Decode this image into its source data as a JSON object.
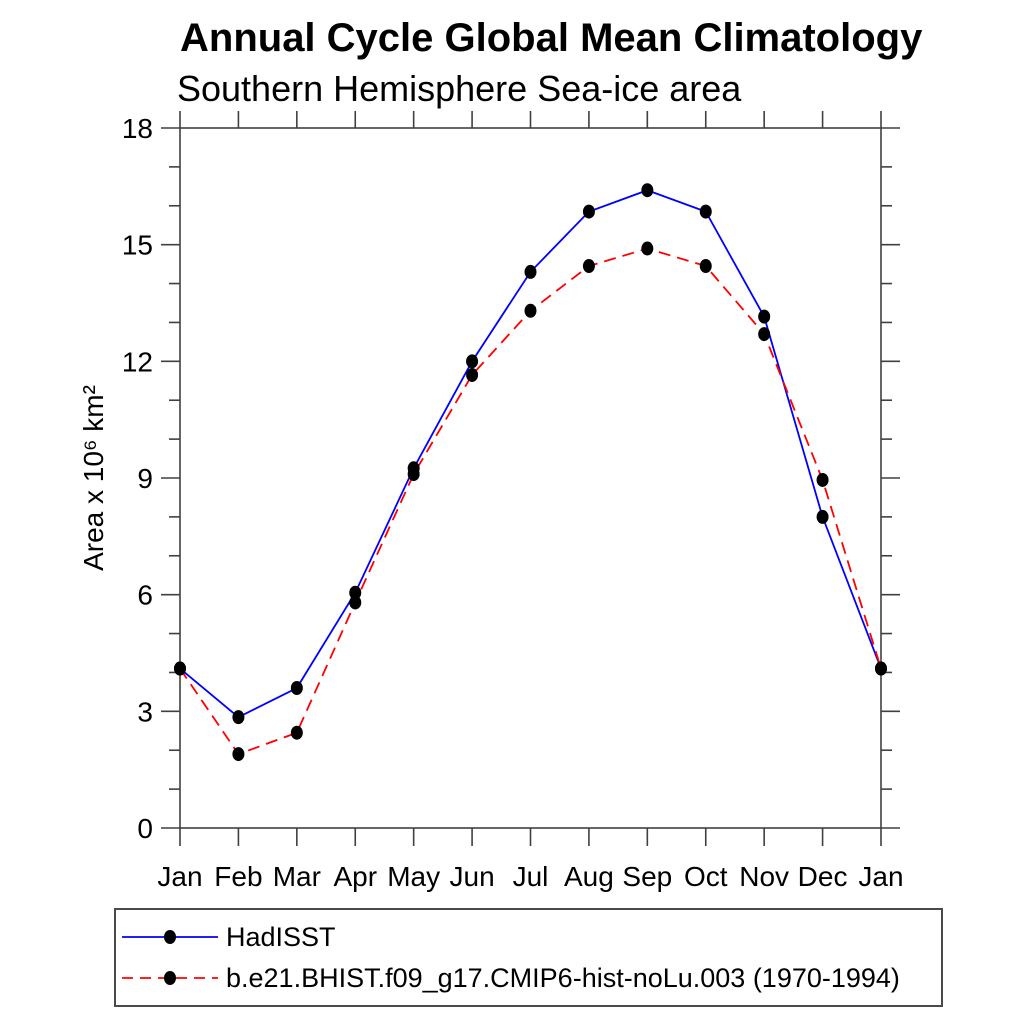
{
  "chart_data": {
    "type": "line",
    "title": "Annual Cycle Global Mean Climatology",
    "subtitle": "Southern Hemisphere Sea-ice area",
    "xlabel": "",
    "ylabel": "Area x 10⁶ km²",
    "categories": [
      "Jan",
      "Feb",
      "Mar",
      "Apr",
      "May",
      "Jun",
      "Jul",
      "Aug",
      "Sep",
      "Oct",
      "Nov",
      "Dec",
      "Jan"
    ],
    "ylim": [
      0,
      18
    ],
    "y_major_ticks": [
      0,
      3,
      6,
      9,
      12,
      15,
      18
    ],
    "y_minor_step": 1,
    "grid": false,
    "legend_position": "bottom",
    "axis_color": "#404040",
    "series": [
      {
        "name": "HadISST",
        "color": "#0000ff",
        "style": "solid",
        "marker": "filled-circle",
        "marker_color": "#000000",
        "values": [
          4.1,
          2.85,
          3.6,
          6.05,
          9.25,
          12.0,
          14.3,
          15.85,
          16.4,
          15.85,
          13.15,
          8.0,
          4.1
        ]
      },
      {
        "name": "b.e21.BHIST.f09_g17.CMIP6-hist-noLu.003 (1970-1994)",
        "color": "#ff0000",
        "style": "dashed",
        "marker": "filled-circle",
        "marker_color": "#000000",
        "values": [
          4.1,
          1.9,
          2.45,
          5.8,
          9.1,
          11.65,
          13.3,
          14.45,
          14.9,
          14.45,
          12.7,
          8.95,
          4.1
        ]
      }
    ]
  }
}
